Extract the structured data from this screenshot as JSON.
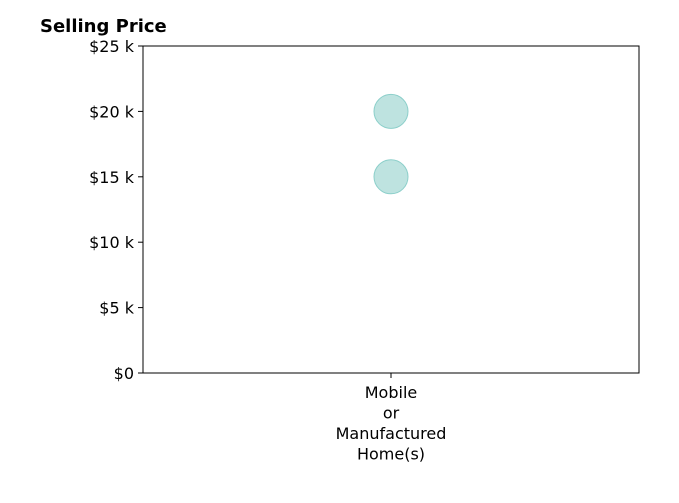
{
  "chart_data": {
    "type": "scatter",
    "title": "Selling Price",
    "xlabel": "",
    "ylabel": "",
    "categories": [
      [
        "Mobile",
        "or",
        "Manufactured",
        "Home(s)"
      ]
    ],
    "y_ticks": [
      {
        "value": 0,
        "label": "$0"
      },
      {
        "value": 5000,
        "label": "$5 k"
      },
      {
        "value": 10000,
        "label": "$10 k"
      },
      {
        "value": 15000,
        "label": "$15 k"
      },
      {
        "value": 20000,
        "label": "$20 k"
      },
      {
        "value": 25000,
        "label": "$25 k"
      }
    ],
    "ylim": [
      0,
      25000
    ],
    "points": [
      {
        "category": 0,
        "y": 20000
      },
      {
        "category": 0,
        "y": 15000
      }
    ],
    "marker_color": "#a8dad6",
    "marker_edge_color": "#8ccfca",
    "grid": false,
    "legend": "none"
  }
}
